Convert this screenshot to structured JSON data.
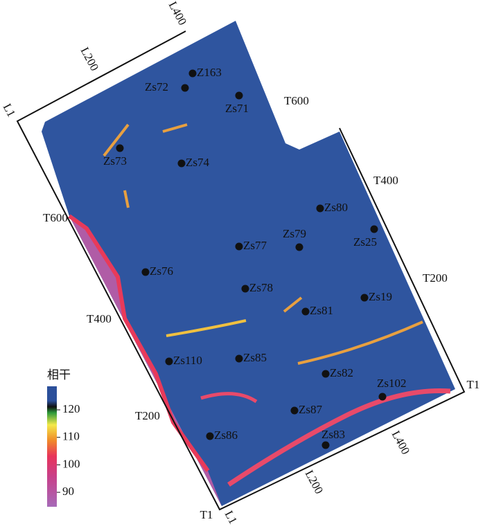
{
  "axis_labels": [
    "L1",
    "L200",
    "L400",
    "T600",
    "T400",
    "T200",
    "T1",
    "L1",
    "L200",
    "L400",
    "T1",
    "T200",
    "T400",
    "T600"
  ],
  "wells": [
    "Z163",
    "Zs72",
    "Zs71",
    "Zs73",
    "Zs74",
    "Zs80",
    "Zs79",
    "Zs25",
    "Zs77",
    "Zs76",
    "Zs78",
    "Zs19",
    "Zs81",
    "Zs110",
    "Zs85",
    "Zs82",
    "Zs102",
    "Zs87",
    "Zs86",
    "Zs83"
  ],
  "legend": {
    "title": "相干",
    "ticks": [
      120,
      110,
      100,
      90
    ]
  }
}
